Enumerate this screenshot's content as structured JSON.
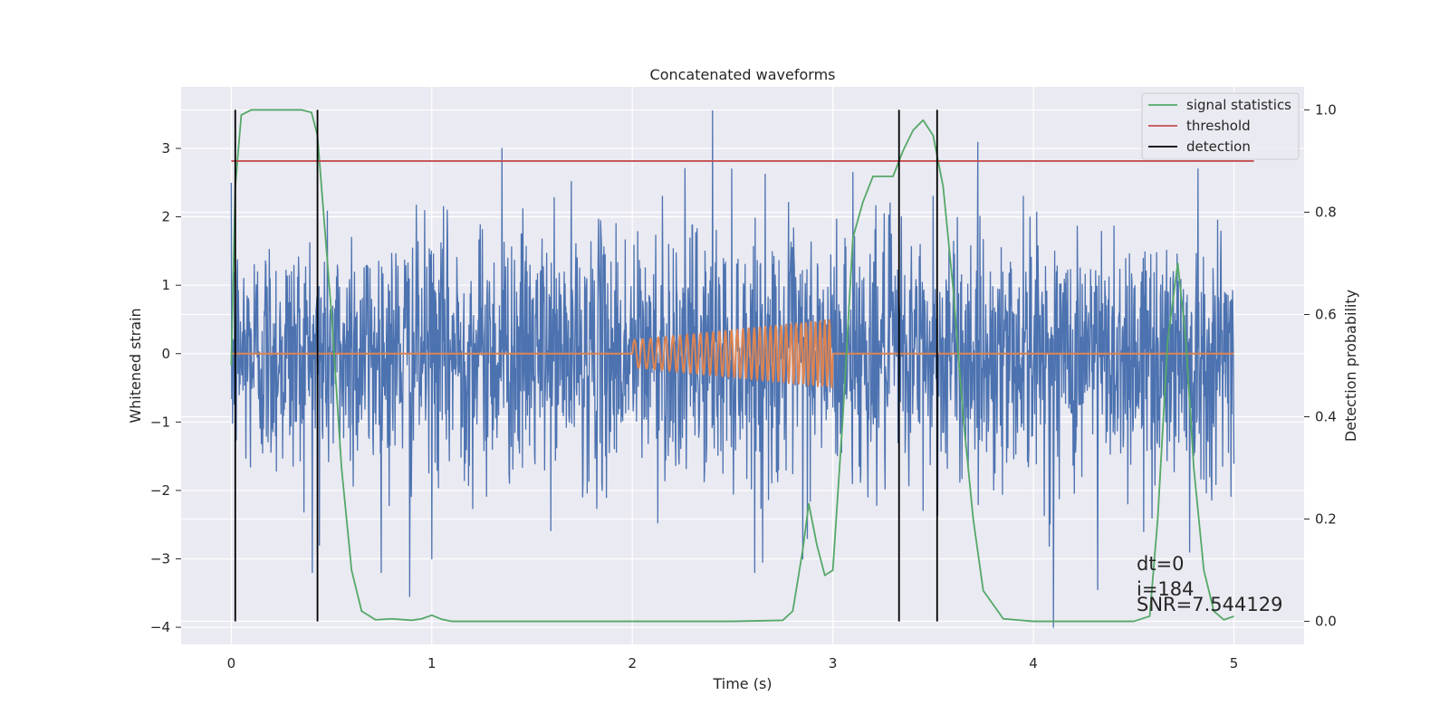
{
  "chart_data": {
    "type": "line",
    "title": "Concatenated waveforms",
    "xlabel": "Time (s)",
    "ylabel": "Whitened strain",
    "ylabel_right": "Detection probability",
    "xlim": [
      -0.25,
      5.35
    ],
    "ylim": [
      -4.25,
      3.9
    ],
    "ylim_right": [
      -0.045,
      1.045
    ],
    "x_ticks": [
      0,
      1,
      2,
      3,
      4,
      5
    ],
    "x_tick_labels": [
      "0",
      "1",
      "2",
      "3",
      "4",
      "5"
    ],
    "y_ticks": [
      3,
      2,
      1,
      0,
      -1,
      -2,
      -3,
      -4
    ],
    "y_tick_labels": [
      "3",
      "2",
      "1",
      "0",
      "−1",
      "−2",
      "−3",
      "−4"
    ],
    "y_right_ticks": [
      1.0,
      0.8,
      0.6,
      0.4,
      0.2,
      0.0
    ],
    "y_right_tick_labels": [
      "1.0",
      "0.8",
      "0.6",
      "0.4",
      "0.2",
      "0.0"
    ],
    "grid": true,
    "legend_position": "top-right",
    "background": "#eaeaf2",
    "series": [
      {
        "key": "strain",
        "axis": "left",
        "color": "#4c72b0",
        "style": "noise",
        "x_range": [
          0,
          5
        ],
        "amplitude_std": 0.9,
        "extremes": [
          [
            0.44,
            -2.8
          ],
          [
            0.6,
            1.7
          ],
          [
            0.89,
            -3.55
          ],
          [
            1.0,
            -3.0
          ],
          [
            1.35,
            3.0
          ],
          [
            1.85,
            -2.0
          ],
          [
            2.15,
            2.3
          ],
          [
            2.4,
            3.55
          ],
          [
            2.65,
            -3.05
          ],
          [
            2.85,
            -3.0
          ],
          [
            3.1,
            2.65
          ],
          [
            3.5,
            2.3
          ],
          [
            3.95,
            2.3
          ],
          [
            4.1,
            -4.0
          ],
          [
            4.32,
            -3.45
          ],
          [
            4.55,
            -2.6
          ],
          [
            4.78,
            -2.9
          ],
          [
            4.82,
            2.7
          ]
        ]
      },
      {
        "key": "injection",
        "axis": "left",
        "color": "#dd8452",
        "style": "chirp",
        "x_range": [
          0,
          5
        ],
        "chirp_start": 2.0,
        "chirp_end": 3.0,
        "amp_start": 0.2,
        "amp_end": 0.5,
        "cycles": 34
      },
      {
        "key": "signal_statistics",
        "name": "signal statistics",
        "axis": "right",
        "color": "#55a868",
        "style": "line",
        "x": [
          0.0,
          0.02,
          0.05,
          0.1,
          0.2,
          0.35,
          0.4,
          0.43,
          0.46,
          0.5,
          0.55,
          0.6,
          0.65,
          0.72,
          0.8,
          0.9,
          0.95,
          1.0,
          1.05,
          1.1,
          1.5,
          2.0,
          2.5,
          2.75,
          2.8,
          2.85,
          2.88,
          2.92,
          2.96,
          3.0,
          3.05,
          3.1,
          3.15,
          3.2,
          3.3,
          3.35,
          3.4,
          3.45,
          3.5,
          3.55,
          3.6,
          3.65,
          3.7,
          3.75,
          3.85,
          4.0,
          4.5,
          4.58,
          4.62,
          4.67,
          4.72,
          4.76,
          4.8,
          4.85,
          4.9,
          4.95,
          5.0
        ],
        "y": [
          0.5,
          0.85,
          0.99,
          1.0,
          1.0,
          1.0,
          0.995,
          0.95,
          0.8,
          0.6,
          0.3,
          0.1,
          0.02,
          0.003,
          0.005,
          0.002,
          0.005,
          0.012,
          0.004,
          0.0,
          0.0,
          0.0,
          0.0,
          0.002,
          0.02,
          0.14,
          0.23,
          0.15,
          0.09,
          0.1,
          0.4,
          0.75,
          0.82,
          0.87,
          0.87,
          0.92,
          0.96,
          0.98,
          0.95,
          0.85,
          0.65,
          0.4,
          0.2,
          0.06,
          0.005,
          0.0,
          0.0,
          0.01,
          0.2,
          0.55,
          0.7,
          0.55,
          0.3,
          0.1,
          0.02,
          0.003,
          0.01
        ]
      },
      {
        "key": "threshold",
        "name": "threshold",
        "axis": "right",
        "color": "#c44e52",
        "style": "line",
        "x": [
          0.0,
          5.1
        ],
        "y": [
          0.9,
          0.9
        ]
      },
      {
        "key": "detection",
        "name": "detection",
        "axis": "right",
        "color": "#000000",
        "style": "vlines",
        "x": [
          0.02,
          0.43,
          3.33,
          3.52
        ],
        "y_from": 0.0,
        "y_to": 1.0
      }
    ],
    "annotations": [
      "dt=0",
      "i=184",
      "SNR=7.544129"
    ]
  }
}
